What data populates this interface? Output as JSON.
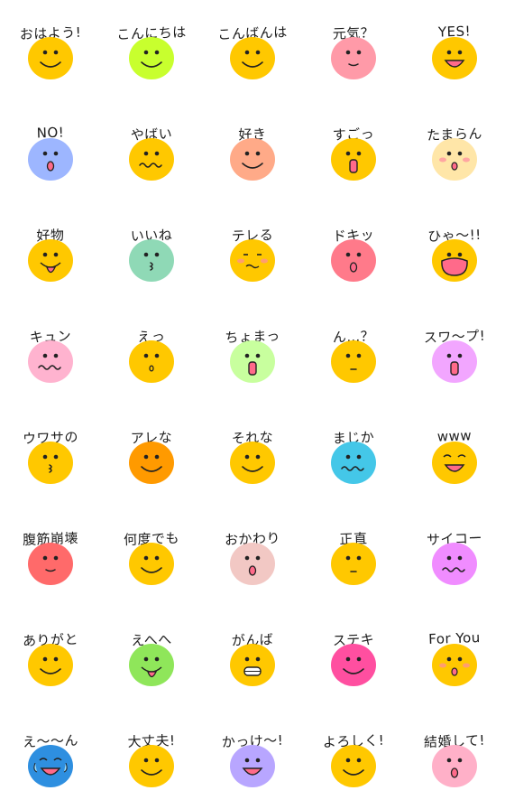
{
  "stickers": [
    {
      "label": "おはよう!",
      "color": "#FFC800",
      "expression": "smile"
    },
    {
      "label": "こんにちは",
      "color": "#C8FF2E",
      "expression": "smile"
    },
    {
      "label": "こんばんは",
      "color": "#FFC800",
      "expression": "smile"
    },
    {
      "label": "元気？",
      "color": "#FF9AA8",
      "expression": "neutral"
    },
    {
      "label": "YES!",
      "color": "#FFC800",
      "expression": "open"
    },
    {
      "label": "NO!",
      "color": "#9DB6FF",
      "expression": "small-o"
    },
    {
      "label": "やばい",
      "color": "#FFC800",
      "expression": "wavy"
    },
    {
      "label": "好き",
      "color": "#FFAA88",
      "expression": "smile"
    },
    {
      "label": "すごっ",
      "color": "#FFC800",
      "expression": "tall-o"
    },
    {
      "label": "たまらん",
      "color": "#FFE6A8",
      "expression": "blush"
    },
    {
      "label": "好物",
      "color": "#FFC800",
      "expression": "tongue"
    },
    {
      "label": "いいね",
      "color": "#8FD9B6",
      "expression": "wink"
    },
    {
      "label": "テレる",
      "color": "#FFC800",
      "expression": "shy"
    },
    {
      "label": "ドキッ",
      "color": "#FF7A8A",
      "expression": "small-o"
    },
    {
      "label": "ひゃ〜!!",
      "color": "#FFC800",
      "expression": "big-open"
    },
    {
      "label": "キュン",
      "color": "#FFB3CF",
      "expression": "wavy"
    },
    {
      "label": "えっ",
      "color": "#FFC800",
      "expression": "tiny-o"
    },
    {
      "label": "ちょまっ",
      "color": "#C8FF9E",
      "expression": "tall-o"
    },
    {
      "label": "ん…？",
      "color": "#FFC800",
      "expression": "flat"
    },
    {
      "label": "スワ〜プ!",
      "color": "#F2A6FF",
      "expression": "tall-o"
    },
    {
      "label": "ウワサの",
      "color": "#FFC800",
      "expression": "wink"
    },
    {
      "label": "アレな",
      "color": "#FF9A00",
      "expression": "smile"
    },
    {
      "label": "それな",
      "color": "#FFC800",
      "expression": "smile"
    },
    {
      "label": "まじか",
      "color": "#44C7E8",
      "expression": "wavy"
    },
    {
      "label": "www",
      "color": "#FFC800",
      "expression": "laugh"
    },
    {
      "label": "腹筋崩壊",
      "color": "#FF6A6A",
      "expression": "neutral"
    },
    {
      "label": "何度でも",
      "color": "#FFC800",
      "expression": "smile"
    },
    {
      "label": "おかわり",
      "color": "#F2C8C4",
      "expression": "small-o"
    },
    {
      "label": "正直",
      "color": "#FFC800",
      "expression": "flat"
    },
    {
      "label": "サイコー",
      "color": "#F08CFF",
      "expression": "wavy"
    },
    {
      "label": "ありがと",
      "color": "#FFC800",
      "expression": "smile"
    },
    {
      "label": "えへへ",
      "color": "#8FE65A",
      "expression": "tongue"
    },
    {
      "label": "がんば",
      "color": "#FFC800",
      "expression": "grin"
    },
    {
      "label": "ステキ",
      "color": "#FF4FA0",
      "expression": "smile"
    },
    {
      "label": "For You",
      "color": "#FFC800",
      "expression": "blush"
    },
    {
      "label": "え〜〜ん",
      "color": "#2E8FE0",
      "expression": "cry"
    },
    {
      "label": "大丈夫!",
      "color": "#FFC800",
      "expression": "smile"
    },
    {
      "label": "かっけ〜!",
      "color": "#B8A6FF",
      "expression": "open"
    },
    {
      "label": "よろしく!",
      "color": "#FFC800",
      "expression": "smile"
    },
    {
      "label": "結婚して!",
      "color": "#FFB0C8",
      "expression": "small-o"
    }
  ]
}
